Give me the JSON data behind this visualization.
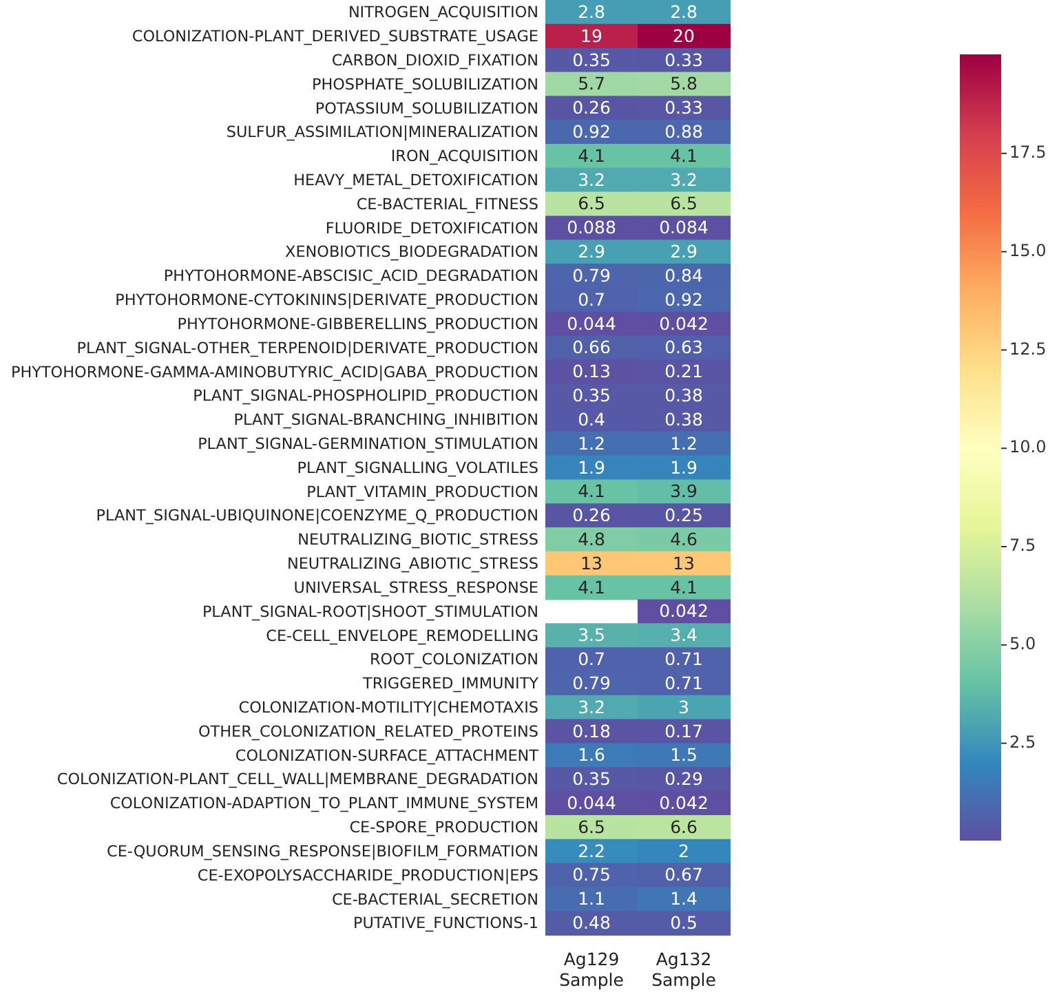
{
  "chart_data": {
    "type": "heatmap",
    "categories": [
      "Ag129 Sample",
      "Ag132 Sample"
    ],
    "y_categories": [
      "NITROGEN_ACQUISITION",
      "COLONIZATION-PLANT_DERIVED_SUBSTRATE_USAGE",
      "CARBON_DIOXID_FIXATION",
      "PHOSPHATE_SOLUBILIZATION",
      "POTASSIUM_SOLUBILIZATION",
      "SULFUR_ASSIMILATION|MINERALIZATION",
      "IRON_ACQUISITION",
      "HEAVY_METAL_DETOXIFICATION",
      "CE-BACTERIAL_FITNESS",
      "FLUORIDE_DETOXIFICATION",
      "XENOBIOTICS_BIODEGRADATION",
      "PHYTOHORMONE-ABSCISIC_ACID_DEGRADATION",
      "PHYTOHORMONE-CYTOKININS|DERIVATE_PRODUCTION",
      "PHYTOHORMONE-GIBBERELLINS_PRODUCTION",
      "PLANT_SIGNAL-OTHER_TERPENOID|DERIVATE_PRODUCTION",
      "PHYTOHORMONE-GAMMA-AMINOBUTYRIC_ACID|GABA_PRODUCTION",
      "PLANT_SIGNAL-PHOSPHOLIPID_PRODUCTION",
      "PLANT_SIGNAL-BRANCHING_INHIBITION",
      "PLANT_SIGNAL-GERMINATION_STIMULATION",
      "PLANT_SIGNALLING_VOLATILES",
      "PLANT_VITAMIN_PRODUCTION",
      "PLANT_SIGNAL-UBIQUINONE|COENZYME_Q_PRODUCTION",
      "NEUTRALIZING_BIOTIC_STRESS",
      "NEUTRALIZING_ABIOTIC_STRESS",
      "UNIVERSAL_STRESS_RESPONSE",
      "PLANT_SIGNAL-ROOT|SHOOT_STIMULATION",
      "CE-CELL_ENVELOPE_REMODELLING",
      "ROOT_COLONIZATION",
      "TRIGGERED_IMMUNITY",
      "COLONIZATION-MOTILITY|CHEMOTAXIS",
      "OTHER_COLONIZATION_RELATED_PROTEINS",
      "COLONIZATION-SURFACE_ATTACHMENT",
      "COLONIZATION-PLANT_CELL_WALL|MEMBRANE_DEGRADATION",
      "COLONIZATION-ADAPTION_TO_PLANT_IMMUNE_SYSTEM",
      "CE-SPORE_PRODUCTION",
      "CE-QUORUM_SENSING_RESPONSE|BIOFILM_FORMATION",
      "CE-EXOPOLYSACCHARIDE_PRODUCTION|EPS",
      "CE-BACTERIAL_SECRETION",
      "PUTATIVE_FUNCTIONS-1"
    ],
    "cells": [
      [
        2.8,
        2.8
      ],
      [
        19,
        20
      ],
      [
        0.35,
        0.33
      ],
      [
        5.7,
        5.8
      ],
      [
        0.26,
        0.33
      ],
      [
        0.92,
        0.88
      ],
      [
        4.1,
        4.1
      ],
      [
        3.2,
        3.2
      ],
      [
        6.5,
        6.5
      ],
      [
        0.088,
        0.084
      ],
      [
        2.9,
        2.9
      ],
      [
        0.79,
        0.84
      ],
      [
        0.7,
        0.92
      ],
      [
        0.044,
        0.042
      ],
      [
        0.66,
        0.63
      ],
      [
        0.13,
        0.21
      ],
      [
        0.35,
        0.38
      ],
      [
        0.4,
        0.38
      ],
      [
        1.2,
        1.2
      ],
      [
        1.9,
        1.9
      ],
      [
        4.1,
        3.9
      ],
      [
        0.26,
        0.25
      ],
      [
        4.8,
        4.6
      ],
      [
        13,
        13
      ],
      [
        4.1,
        4.1
      ],
      [
        null,
        0.042
      ],
      [
        3.5,
        3.4
      ],
      [
        0.7,
        0.71
      ],
      [
        0.79,
        0.71
      ],
      [
        3.2,
        3
      ],
      [
        0.18,
        0.17
      ],
      [
        1.6,
        1.5
      ],
      [
        0.35,
        0.29
      ],
      [
        0.044,
        0.042
      ],
      [
        6.5,
        6.6
      ],
      [
        2.2,
        2
      ],
      [
        0.75,
        0.67
      ],
      [
        1.1,
        1.4
      ],
      [
        0.48,
        0.5
      ]
    ],
    "data_labels": true,
    "clim": [
      0.042,
      20
    ],
    "cticks": [
      2.5,
      {
        "value": 5,
        "label": "5.0"
      },
      7.5,
      {
        "value": 10,
        "label": "10.0"
      },
      12.5,
      {
        "value": 15,
        "label": "15.0"
      },
      17.5
    ]
  }
}
